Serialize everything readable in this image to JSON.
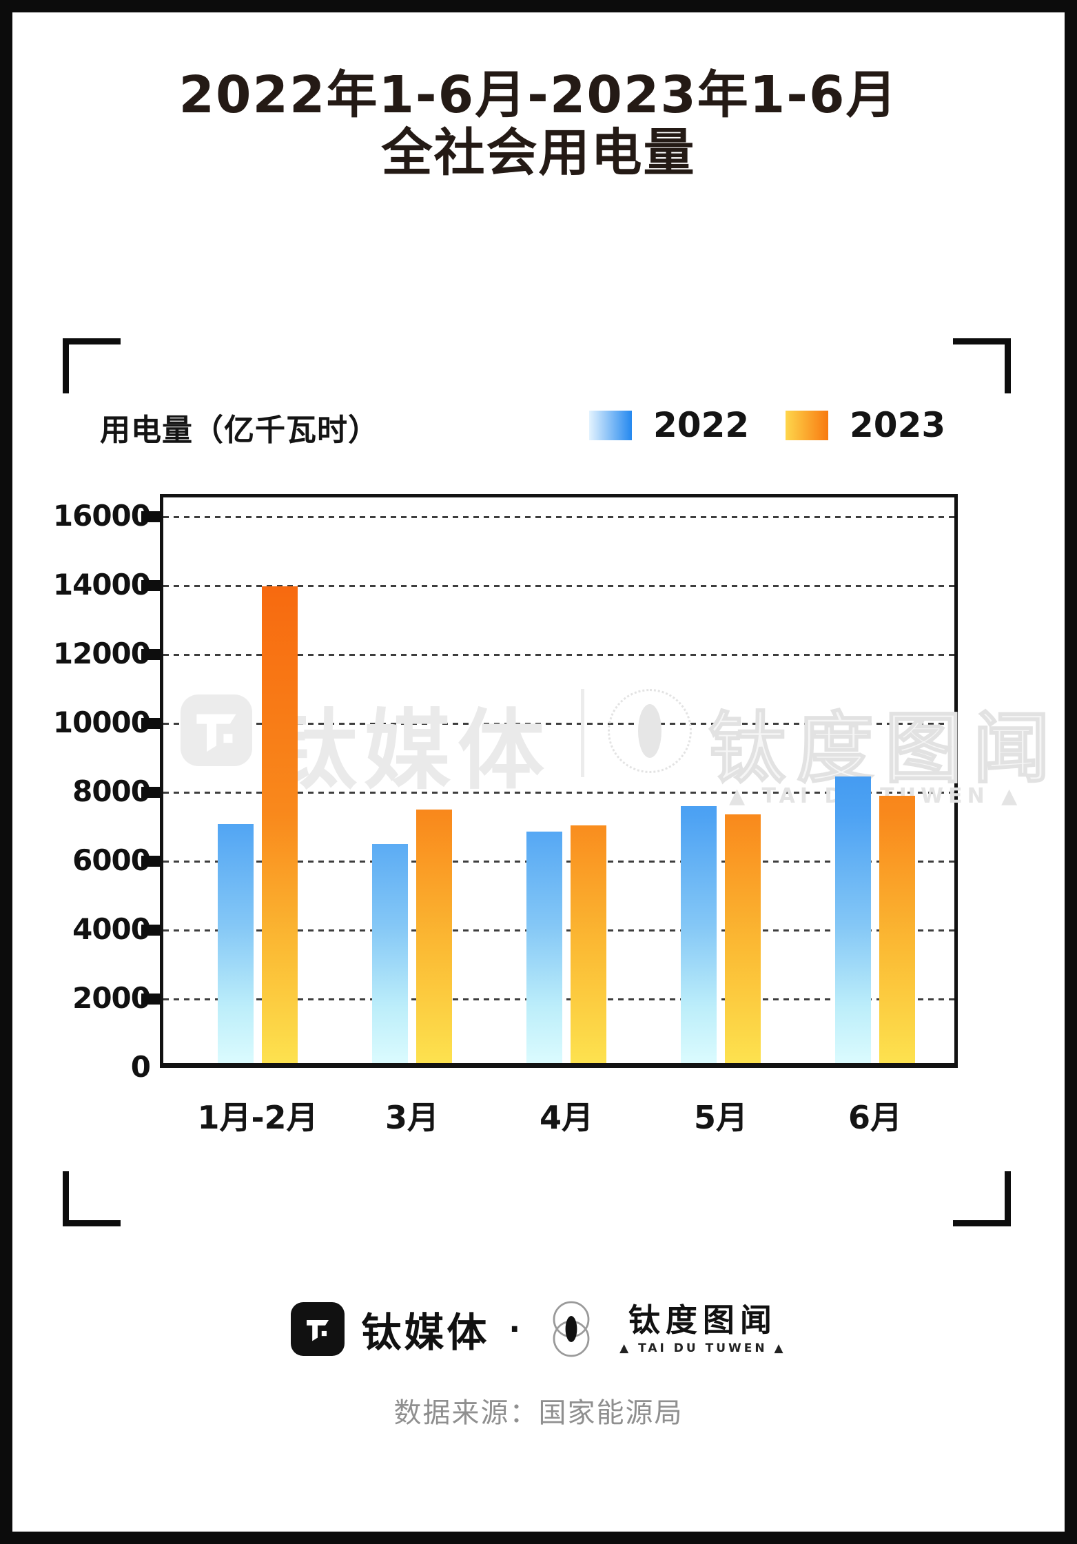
{
  "page": {
    "title_line1": "2022年1-6月-2023年1-6月",
    "title_line2": "全社会用电量"
  },
  "chart": {
    "unit_label": "用电量（亿千瓦时）",
    "legend": [
      {
        "label": "2022",
        "swatch_start": "#e3f3fe",
        "swatch_end": "#2488ef"
      },
      {
        "label": "2023",
        "swatch_start": "#fed64c",
        "swatch_end": "#f87a10"
      }
    ]
  },
  "chart_data": {
    "type": "bar",
    "title": "2022年1-6月-2023年1-6月 全社会用电量",
    "ylabel": "用电量（亿千瓦时）",
    "categories": [
      "1月-2月",
      "3月",
      "4月",
      "5月",
      "6月"
    ],
    "series": [
      {
        "name": "2022",
        "values": [
          6944,
          6361,
          6716,
          7451,
          8324
        ]
      },
      {
        "name": "2023",
        "values": [
          13834,
          7369,
          6901,
          7222,
          7751
        ]
      }
    ],
    "ylim": [
      0,
      16000
    ],
    "yticks": [
      0,
      2000,
      4000,
      6000,
      8000,
      10000,
      12000,
      14000,
      16000
    ],
    "grid": "dashed-horizontal",
    "legend_position": "top-right",
    "series_colors": {
      "2022": {
        "top": "#4da2f3",
        "bottom": "#dbfbfe"
      },
      "2023": {
        "top": "#f0520a",
        "bottom": "#fde24f"
      }
    }
  },
  "watermark": {
    "brand1": "钛媒体",
    "brand2": "钛度图闻",
    "caption": "▲ TAI DU TUWEN ▲"
  },
  "footer": {
    "brand1": "钛媒体",
    "dot": "·",
    "brand2": "钛度图闻",
    "brand2_sub": "▲ TAI DU TUWEN ▲",
    "source": "数据来源：国家能源局"
  }
}
